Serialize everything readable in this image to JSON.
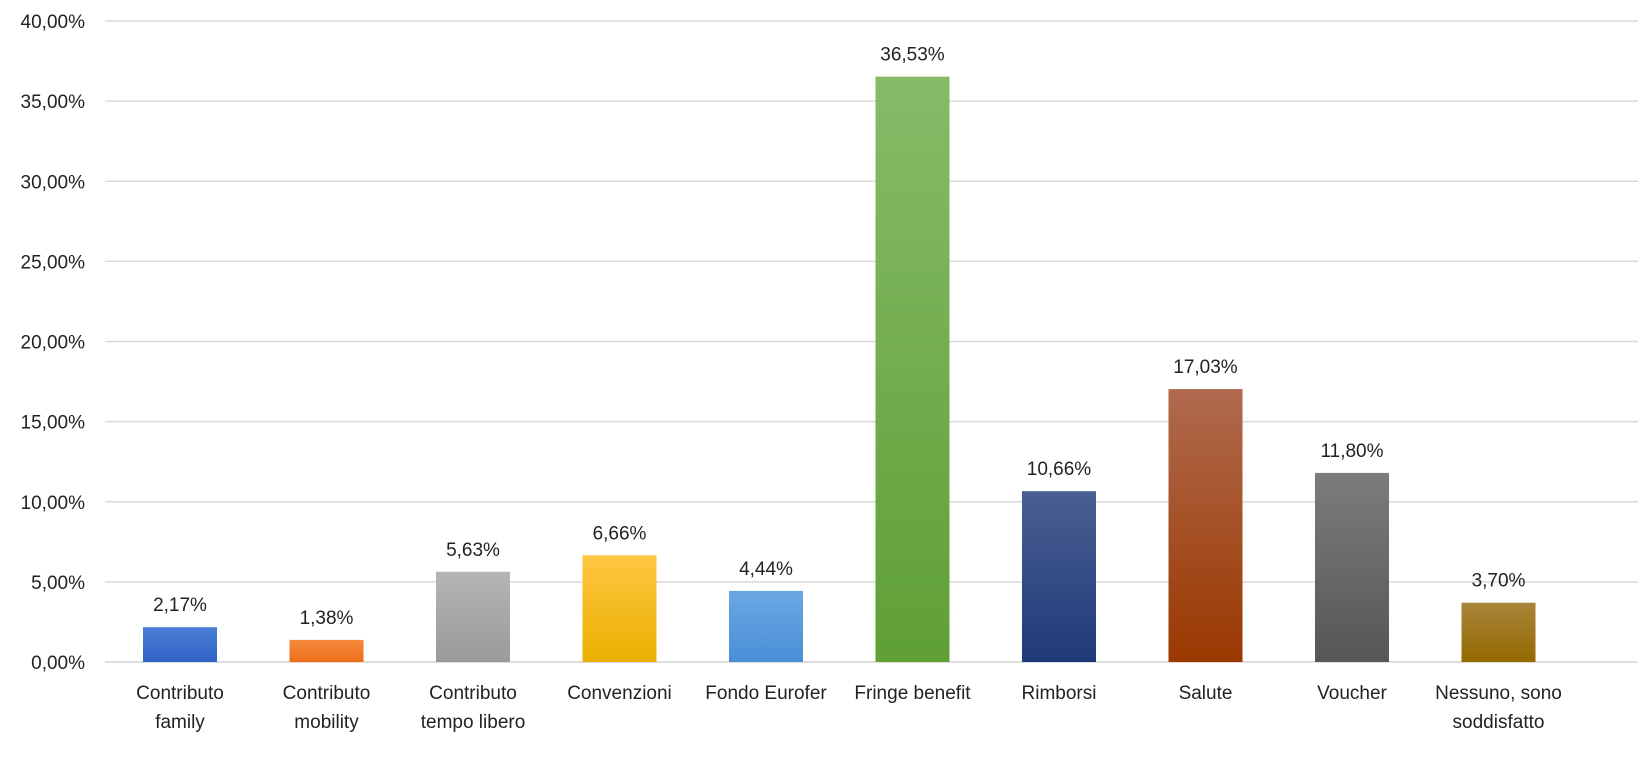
{
  "chart_data": {
    "type": "bar",
    "title": "",
    "xlabel": "",
    "ylabel": "",
    "ylim": [
      0,
      40
    ],
    "y_ticks": [
      "0,00%",
      "5,00%",
      "10,00%",
      "15,00%",
      "20,00%",
      "25,00%",
      "30,00%",
      "35,00%",
      "40,00%"
    ],
    "y_tick_values": [
      0,
      5,
      10,
      15,
      20,
      25,
      30,
      35,
      40
    ],
    "grid": true,
    "legend": "none",
    "categories": [
      [
        "Contributo",
        "family"
      ],
      [
        "Contributo",
        "mobility"
      ],
      [
        "Contributo",
        "tempo libero"
      ],
      [
        "Convenzioni"
      ],
      [
        "Fondo Eurofer"
      ],
      [
        "Fringe benefit"
      ],
      [
        "Rimborsi"
      ],
      [
        "Salute"
      ],
      [
        "Voucher"
      ],
      [
        "Nessuno, sono",
        "soddisfatto"
      ]
    ],
    "values": [
      2.17,
      1.38,
      5.63,
      6.66,
      4.44,
      36.53,
      10.66,
      17.03,
      11.8,
      3.7
    ],
    "data_labels": [
      "2,17%",
      "1,38%",
      "5,63%",
      "6,66%",
      "4,44%",
      "36,53%",
      "10,66%",
      "17,03%",
      "11,80%",
      "3,70%"
    ],
    "colors": [
      [
        "#4a7fd6",
        "#2f62c4"
      ],
      [
        "#f58a3c",
        "#ec6e19"
      ],
      [
        "#b5b5b5",
        "#9a9a9a"
      ],
      [
        "#ffc642",
        "#e9b000"
      ],
      [
        "#6aa8e4",
        "#4a8ed6"
      ],
      [
        "#86bb68",
        "#5fa035"
      ],
      [
        "#4a5f93",
        "#1f3a78"
      ],
      [
        "#b06a4e",
        "#9a3800"
      ],
      [
        "#7c7c7c",
        "#565656"
      ],
      [
        "#a8843a",
        "#946a00"
      ]
    ]
  }
}
